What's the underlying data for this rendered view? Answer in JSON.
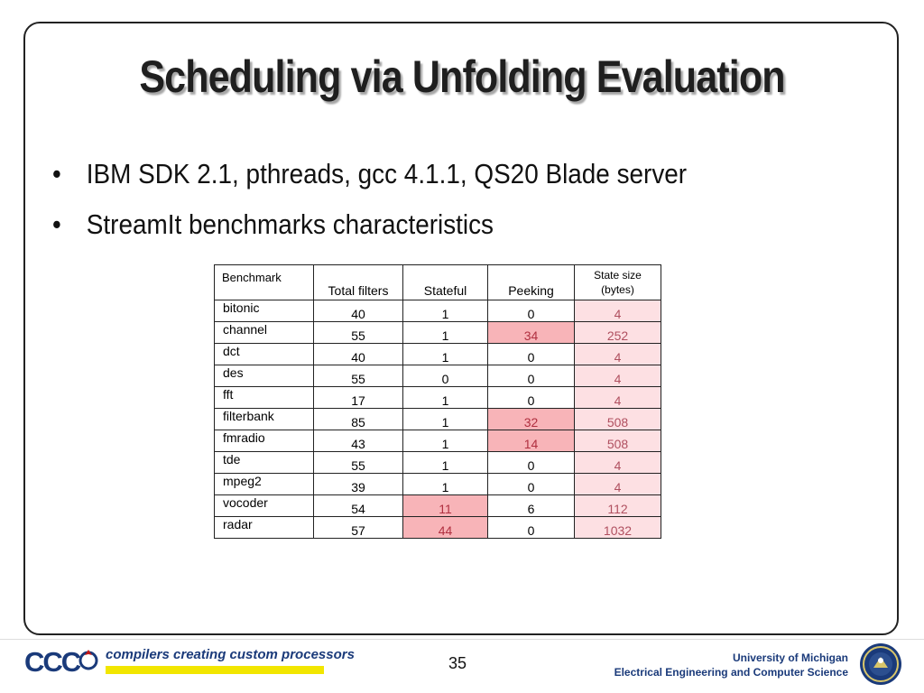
{
  "slide": {
    "title": "Scheduling via Unfolding Evaluation",
    "bullets": [
      "IBM SDK 2.1, pthreads, gcc 4.1.1, QS20 Blade server",
      "StreamIt benchmarks characteristics"
    ],
    "bullet_glyph": "•"
  },
  "table": {
    "headers": [
      "Benchmark",
      "Total filters",
      "Stateful",
      "Peeking",
      "State size (bytes)"
    ],
    "header_state_line1": "State size",
    "header_state_line2": "(bytes)",
    "rows": [
      {
        "name": "bitonic",
        "total": "40",
        "stateful": "1",
        "peeking": "0",
        "state": "4"
      },
      {
        "name": "channel",
        "total": "55",
        "stateful": "1",
        "peeking": "34",
        "state": "252"
      },
      {
        "name": "dct",
        "total": "40",
        "stateful": "1",
        "peeking": "0",
        "state": "4"
      },
      {
        "name": "des",
        "total": "55",
        "stateful": "0",
        "peeking": "0",
        "state": "4"
      },
      {
        "name": "fft",
        "total": "17",
        "stateful": "1",
        "peeking": "0",
        "state": "4"
      },
      {
        "name": "filterbank",
        "total": "85",
        "stateful": "1",
        "peeking": "32",
        "state": "508"
      },
      {
        "name": "fmradio",
        "total": "43",
        "stateful": "1",
        "peeking": "14",
        "state": "508"
      },
      {
        "name": "tde",
        "total": "55",
        "stateful": "1",
        "peeking": "0",
        "state": "4"
      },
      {
        "name": "mpeg2",
        "total": "39",
        "stateful": "1",
        "peeking": "0",
        "state": "4"
      },
      {
        "name": "vocoder",
        "total": "54",
        "stateful": "11",
        "peeking": "6",
        "state": "112"
      },
      {
        "name": "radar",
        "total": "57",
        "stateful": "44",
        "peeking": "0",
        "state": "1032"
      }
    ],
    "highlight_color": "#f8b4b8",
    "state_column_color": "#fde0e3"
  },
  "footer": {
    "logo_text": "CCC",
    "tagline": "compilers creating custom processors",
    "page_number": "35",
    "university": "University of Michigan",
    "department": "Electrical Engineering and Computer Science"
  },
  "colors": {
    "brand_blue": "#1a3a7a",
    "tagline_bar": "#f2e600"
  }
}
